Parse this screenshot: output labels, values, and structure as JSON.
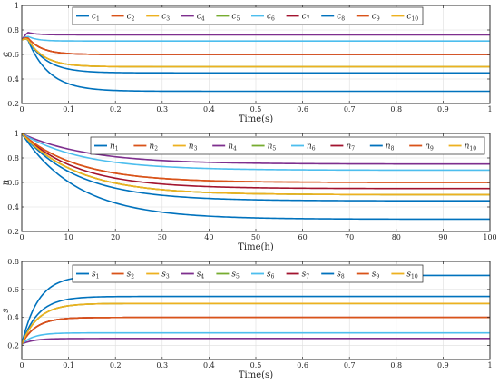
{
  "chart_data": [
    {
      "type": "line",
      "id": "c",
      "ylabel": "c",
      "xlabel": "Time(s)",
      "xlim": [
        0,
        1
      ],
      "ylim": [
        0.2,
        1
      ],
      "xticks": [
        0,
        0.1,
        0.2,
        0.3,
        0.4,
        0.5,
        0.6,
        0.7,
        0.8,
        0.9,
        1
      ],
      "xtick_labels": [
        "0",
        "0.1",
        "0.2",
        "0.3",
        "0.4",
        "0.5",
        "0.6",
        "0.7",
        "0.8",
        "0.9",
        "1"
      ],
      "yticks": [
        0.2,
        0.4,
        0.6,
        0.8,
        1
      ],
      "ytick_labels": [
        "0.2",
        "0.4",
        "0.6",
        "0.8",
        "1"
      ],
      "grid": true,
      "legend_position": "top",
      "legend_symbol": "c",
      "legend_subscripts": [
        "1",
        "2",
        "3",
        "4",
        "5",
        "6",
        "7",
        "8",
        "9",
        "10"
      ],
      "series": [
        {
          "y0": 0.72,
          "peak": 0.73,
          "final": 0.3,
          "tau": 0.045,
          "color": "#0072bd"
        },
        {
          "y0": 0.72,
          "peak": 0.74,
          "final": 0.6,
          "tau": 0.03,
          "color": "#d95319"
        },
        {
          "y0": 0.72,
          "peak": 0.73,
          "final": 0.5,
          "tau": 0.035,
          "color": "#edb120"
        },
        {
          "y0": 0.72,
          "peak": 0.78,
          "final": 0.76,
          "tau": 0.02,
          "color": "#7e2f8e"
        },
        {
          "y0": 0.72,
          "peak": 0.73,
          "final": 0.5,
          "tau": 0.035,
          "color": "#77ac30"
        },
        {
          "y0": 0.72,
          "peak": 0.75,
          "final": 0.71,
          "tau": 0.02,
          "color": "#4dbeee"
        },
        {
          "y0": 0.72,
          "peak": 0.74,
          "final": 0.6,
          "tau": 0.03,
          "color": "#a2142f"
        },
        {
          "y0": 0.72,
          "peak": 0.73,
          "final": 0.45,
          "tau": 0.04,
          "color": "#0072bd"
        },
        {
          "y0": 0.72,
          "peak": 0.74,
          "final": 0.6,
          "tau": 0.03,
          "color": "#d95319"
        },
        {
          "y0": 0.72,
          "peak": 0.73,
          "final": 0.5,
          "tau": 0.035,
          "color": "#edb120"
        }
      ]
    },
    {
      "type": "line",
      "id": "n",
      "ylabel": "n",
      "xlabel": "Time(h)",
      "xlim": [
        0,
        100
      ],
      "ylim": [
        0.2,
        1
      ],
      "xticks": [
        0,
        10,
        20,
        30,
        40,
        50,
        60,
        70,
        80,
        90,
        100
      ],
      "xtick_labels": [
        "0",
        "10",
        "20",
        "30",
        "40",
        "50",
        "60",
        "70",
        "80",
        "90",
        "100"
      ],
      "yticks": [
        0.2,
        0.4,
        0.6,
        0.8,
        1
      ],
      "ytick_labels": [
        "0.2",
        "0.4",
        "0.6",
        "0.8",
        "1"
      ],
      "grid": true,
      "legend_position": "top-right",
      "legend_symbol": "n",
      "legend_subscripts": [
        "1",
        "2",
        "3",
        "4",
        "5",
        "6",
        "7",
        "8",
        "9",
        "10"
      ],
      "series": [
        {
          "y0": 1.0,
          "final": 0.3,
          "tau": 12,
          "color": "#0072bd"
        },
        {
          "y0": 1.0,
          "final": 0.6,
          "tau": 12,
          "color": "#d95319"
        },
        {
          "y0": 1.0,
          "final": 0.5,
          "tau": 12,
          "color": "#edb120"
        },
        {
          "y0": 1.0,
          "final": 0.75,
          "tau": 14,
          "color": "#7e2f8e"
        },
        {
          "y0": 1.0,
          "final": 0.5,
          "tau": 12,
          "color": "#77ac30"
        },
        {
          "y0": 1.0,
          "final": 0.7,
          "tau": 13,
          "color": "#4dbeee"
        },
        {
          "y0": 1.0,
          "final": 0.55,
          "tau": 12,
          "color": "#a2142f"
        },
        {
          "y0": 1.0,
          "final": 0.45,
          "tau": 12,
          "color": "#0072bd"
        },
        {
          "y0": 1.0,
          "final": 0.6,
          "tau": 12,
          "color": "#d95319"
        },
        {
          "y0": 1.0,
          "final": 0.5,
          "tau": 12,
          "color": "#edb120"
        }
      ]
    },
    {
      "type": "line",
      "id": "s",
      "ylabel": "s",
      "xlabel": "Time(s)",
      "xlim": [
        0,
        1
      ],
      "ylim": [
        0.1,
        0.8
      ],
      "xticks": [
        0,
        0.1,
        0.2,
        0.3,
        0.4,
        0.5,
        0.6,
        0.7,
        0.8,
        0.9,
        1
      ],
      "xtick_labels": [
        "0",
        "0.1",
        "0.2",
        "0.3",
        "0.4",
        "0.5",
        "0.6",
        "0.7",
        "0.8",
        "0.9",
        "1"
      ],
      "yticks": [
        0.2,
        0.4,
        0.6,
        0.8
      ],
      "ytick_labels": [
        "0.2",
        "0.4",
        "0.6",
        "0.8"
      ],
      "grid": true,
      "legend_position": "top",
      "legend_symbol": "s",
      "legend_subscripts": [
        "1",
        "2",
        "3",
        "4",
        "5",
        "6",
        "7",
        "8",
        "9",
        "10"
      ],
      "series": [
        {
          "y0": 0.21,
          "final": 0.7,
          "tau": 0.035,
          "color": "#0072bd"
        },
        {
          "y0": 0.21,
          "final": 0.4,
          "tau": 0.03,
          "color": "#d95319"
        },
        {
          "y0": 0.21,
          "final": 0.5,
          "tau": 0.035,
          "color": "#edb120"
        },
        {
          "y0": 0.21,
          "final": 0.25,
          "tau": 0.025,
          "color": "#7e2f8e"
        },
        {
          "y0": 0.21,
          "final": 0.5,
          "tau": 0.035,
          "color": "#77ac30"
        },
        {
          "y0": 0.21,
          "final": 0.29,
          "tau": 0.025,
          "color": "#4dbeee"
        },
        {
          "y0": 0.21,
          "final": 0.4,
          "tau": 0.03,
          "color": "#a2142f"
        },
        {
          "y0": 0.21,
          "final": 0.55,
          "tau": 0.035,
          "color": "#0072bd"
        },
        {
          "y0": 0.21,
          "final": 0.4,
          "tau": 0.03,
          "color": "#d95319"
        },
        {
          "y0": 0.21,
          "final": 0.5,
          "tau": 0.035,
          "color": "#edb120"
        }
      ]
    }
  ]
}
